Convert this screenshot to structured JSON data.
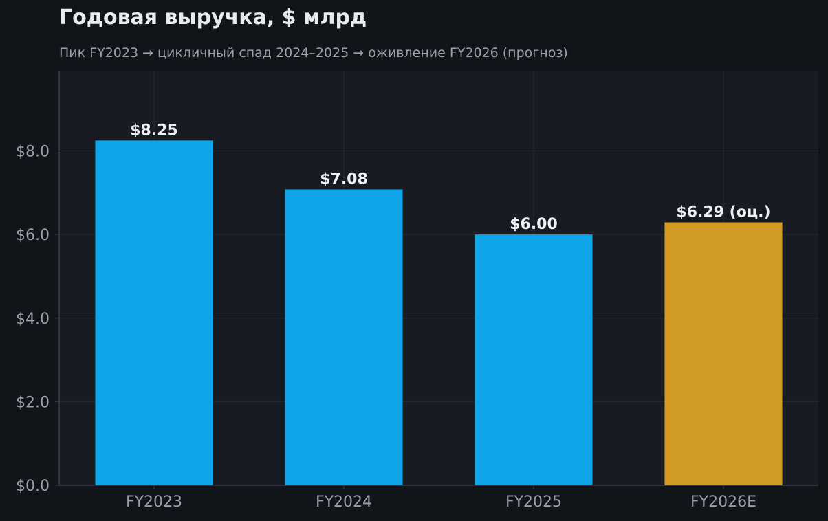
{
  "chart_data": {
    "type": "bar",
    "title": "Годовая выручка, $ млрд",
    "subtitle": "Пик FY2023 → цикличный спад 2024–2025 → оживление FY2026 (прогноз)",
    "categories": [
      "FY2023",
      "FY2024",
      "FY2025",
      "FY2026E"
    ],
    "values": [
      8.25,
      7.08,
      6.0,
      6.29
    ],
    "data_labels": [
      "$8.25",
      "$7.08",
      "$6.00",
      "$6.29 (оц.)"
    ],
    "bar_colors": [
      "#0ea5e9",
      "#0ea5e9",
      "#0ea5e9",
      "#d19a22"
    ],
    "ylim": [
      0,
      9.9
    ],
    "yticks": [
      0,
      2,
      4,
      6,
      8
    ],
    "ytick_labels": [
      "$0.0",
      "$2.0",
      "$4.0",
      "$6.0",
      "$8.0"
    ],
    "xlabel": "",
    "ylabel": "",
    "grid": true,
    "legend": "none"
  }
}
